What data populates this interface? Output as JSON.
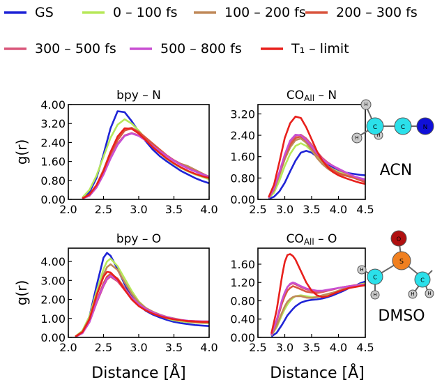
{
  "legend": {
    "items": [
      {
        "label": "GS",
        "color": "#1f24d6"
      },
      {
        "label": "0 – 100 fs",
        "color": "#b7e85a"
      },
      {
        "label": "100 – 200 fs",
        "color": "#c08a5a"
      },
      {
        "label": "200 – 300 fs",
        "color": "#d9553f"
      },
      {
        "label": "300 – 500 fs",
        "color": "#d9567a"
      },
      {
        "label": "500 – 800 fs",
        "color": "#c84fd2"
      },
      {
        "label": "T₁ – limit",
        "color": "#e8201c"
      }
    ]
  },
  "molecules": {
    "acn": {
      "label": "ACN",
      "atoms": [
        "H",
        "H",
        "H",
        "C",
        "C",
        "N"
      ],
      "atom_colors": {
        "H": "#c9c9c9",
        "C": "#2be0ea",
        "N": "#1010d8"
      }
    },
    "dmso": {
      "label": "DMSO",
      "atoms": [
        "O",
        "S",
        "H",
        "C",
        "H",
        "C",
        "H",
        "H"
      ],
      "atom_colors": {
        "O": "#b01010",
        "S": "#f08020",
        "C": "#2be0ea",
        "H": "#c9c9c9"
      }
    }
  },
  "chart_data": [
    {
      "type": "line",
      "title": "bpy – N",
      "xlabel": "",
      "ylabel": "g(r)",
      "xlim": [
        2.0,
        4.0
      ],
      "ylim": [
        0.0,
        4.0
      ],
      "xticks": [
        "2.0",
        "2.5",
        "3.0",
        "3.5",
        "4.0"
      ],
      "yticks": [
        "0.00",
        "0.80",
        "1.60",
        "2.40",
        "3.20",
        "4.00"
      ],
      "x": [
        2.2,
        2.3,
        2.4,
        2.5,
        2.6,
        2.7,
        2.8,
        2.9,
        3.0,
        3.1,
        3.2,
        3.3,
        3.4,
        3.5,
        3.6,
        3.7,
        3.8,
        3.9,
        4.0
      ],
      "series": [
        {
          "name": "GS",
          "values": [
            0.03,
            0.3,
            0.9,
            1.9,
            3.0,
            3.72,
            3.68,
            3.3,
            2.85,
            2.45,
            2.1,
            1.82,
            1.6,
            1.4,
            1.2,
            1.05,
            0.9,
            0.78,
            0.68
          ]
        },
        {
          "name": "0 – 100 fs",
          "values": [
            0.08,
            0.4,
            1.0,
            1.8,
            2.6,
            3.15,
            3.38,
            3.2,
            2.9,
            2.55,
            2.25,
            1.95,
            1.7,
            1.5,
            1.32,
            1.18,
            1.05,
            0.95,
            0.85
          ]
        },
        {
          "name": "100 – 200 fs",
          "values": [
            0.05,
            0.2,
            0.6,
            1.25,
            2.0,
            2.6,
            2.95,
            3.02,
            2.85,
            2.6,
            2.35,
            2.1,
            1.85,
            1.65,
            1.5,
            1.4,
            1.25,
            1.1,
            0.95
          ]
        },
        {
          "name": "200 – 300 fs",
          "values": [
            0.04,
            0.18,
            0.55,
            1.15,
            1.9,
            2.5,
            2.9,
            3.0,
            2.85,
            2.6,
            2.35,
            2.1,
            1.85,
            1.65,
            1.48,
            1.32,
            1.2,
            1.08,
            0.95
          ]
        },
        {
          "name": "300 – 500 fs",
          "values": [
            0.04,
            0.15,
            0.5,
            1.05,
            1.75,
            2.35,
            2.7,
            2.8,
            2.7,
            2.5,
            2.25,
            2.05,
            1.85,
            1.65,
            1.48,
            1.32,
            1.2,
            1.08,
            0.95
          ]
        },
        {
          "name": "500 – 800 fs",
          "values": [
            0.04,
            0.15,
            0.5,
            1.05,
            1.72,
            2.3,
            2.68,
            2.78,
            2.68,
            2.48,
            2.25,
            2.02,
            1.82,
            1.62,
            1.45,
            1.3,
            1.18,
            1.06,
            0.95
          ]
        },
        {
          "name": "T₁ – limit",
          "values": [
            0.04,
            0.2,
            0.6,
            1.2,
            2.0,
            2.65,
            3.0,
            2.98,
            2.78,
            2.5,
            2.2,
            1.95,
            1.72,
            1.52,
            1.35,
            1.2,
            1.08,
            0.98,
            0.9
          ]
        }
      ]
    },
    {
      "type": "line",
      "title": "CO_All – N",
      "xlabel": "",
      "ylabel": "",
      "xlim": [
        2.5,
        4.5
      ],
      "ylim": [
        0.0,
        3.55
      ],
      "xticks": [
        "2.5",
        "3.0",
        "3.5",
        "4.0",
        "4.5"
      ],
      "yticks": [
        "0.00",
        "0.80",
        "1.60",
        "2.40",
        "3.20"
      ],
      "x": [
        2.7,
        2.8,
        2.9,
        3.0,
        3.1,
        3.2,
        3.3,
        3.4,
        3.5,
        3.6,
        3.7,
        3.8,
        3.9,
        4.0,
        4.1,
        4.2,
        4.3,
        4.4,
        4.5
      ],
      "series": [
        {
          "name": "GS",
          "values": [
            0.02,
            0.1,
            0.3,
            0.62,
            1.05,
            1.45,
            1.75,
            1.82,
            1.75,
            1.6,
            1.45,
            1.32,
            1.2,
            1.1,
            1.02,
            0.98,
            0.95,
            0.92,
            0.9
          ]
        },
        {
          "name": "0 – 100 fs",
          "values": [
            0.05,
            0.25,
            0.7,
            1.25,
            1.7,
            2.0,
            2.1,
            2.0,
            1.82,
            1.6,
            1.4,
            1.25,
            1.12,
            1.02,
            0.95,
            0.88,
            0.82,
            0.78,
            0.72
          ]
        },
        {
          "name": "100 – 200 fs",
          "values": [
            0.06,
            0.35,
            0.9,
            1.5,
            1.95,
            2.22,
            2.28,
            2.12,
            1.85,
            1.55,
            1.32,
            1.15,
            1.02,
            0.95,
            0.9,
            0.85,
            0.8,
            0.72,
            0.65
          ]
        },
        {
          "name": "200 – 300 fs",
          "values": [
            0.06,
            0.4,
            1.0,
            1.6,
            2.05,
            2.3,
            2.35,
            2.2,
            1.95,
            1.68,
            1.45,
            1.25,
            1.1,
            0.98,
            0.92,
            0.86,
            0.8,
            0.72,
            0.65
          ]
        },
        {
          "name": "300 – 500 fs",
          "values": [
            0.06,
            0.4,
            1.0,
            1.65,
            2.15,
            2.38,
            2.42,
            2.28,
            2.05,
            1.78,
            1.55,
            1.38,
            1.25,
            1.12,
            1.02,
            0.94,
            0.85,
            0.76,
            0.7
          ]
        },
        {
          "name": "500 – 800 fs",
          "values": [
            0.06,
            0.42,
            1.02,
            1.68,
            2.2,
            2.42,
            2.4,
            2.22,
            1.98,
            1.72,
            1.5,
            1.35,
            1.25,
            1.15,
            1.05,
            0.95,
            0.86,
            0.8,
            0.75
          ]
        },
        {
          "name": "T₁ – limit",
          "values": [
            0.08,
            0.55,
            1.4,
            2.3,
            2.85,
            3.1,
            3.05,
            2.7,
            2.25,
            1.8,
            1.45,
            1.2,
            1.02,
            0.9,
            0.82,
            0.75,
            0.68,
            0.62,
            0.58
          ]
        }
      ]
    },
    {
      "type": "line",
      "title": "bpy – O",
      "xlabel": "Distance [Å]",
      "ylabel": "g(r)",
      "xlim": [
        2.0,
        4.0
      ],
      "ylim": [
        0.0,
        4.7
      ],
      "xticks": [
        "2.0",
        "2.5",
        "3.0",
        "3.5",
        "4.0"
      ],
      "yticks": [
        "0.00",
        "1.00",
        "2.00",
        "3.00",
        "4.00"
      ],
      "x": [
        2.1,
        2.2,
        2.3,
        2.4,
        2.5,
        2.55,
        2.6,
        2.7,
        2.8,
        2.9,
        3.0,
        3.1,
        3.2,
        3.3,
        3.4,
        3.5,
        3.6,
        3.7,
        3.8,
        3.9,
        4.0
      ],
      "series": [
        {
          "name": "GS",
          "values": [
            0.03,
            0.3,
            1.1,
            2.7,
            4.2,
            4.45,
            4.3,
            3.6,
            2.8,
            2.15,
            1.7,
            1.4,
            1.2,
            1.05,
            0.92,
            0.82,
            0.75,
            0.7,
            0.65,
            0.62,
            0.6
          ]
        },
        {
          "name": "0 – 100 fs",
          "values": [
            0.05,
            0.35,
            1.1,
            2.4,
            3.6,
            4.0,
            4.15,
            3.75,
            3.1,
            2.45,
            1.9,
            1.55,
            1.3,
            1.15,
            1.0,
            0.9,
            0.85,
            0.8,
            0.78,
            0.76,
            0.75
          ]
        },
        {
          "name": "100 – 200 fs",
          "values": [
            0.04,
            0.3,
            1.0,
            2.2,
            3.3,
            3.7,
            3.85,
            3.55,
            2.9,
            2.3,
            1.85,
            1.55,
            1.35,
            1.2,
            1.08,
            1.0,
            0.92,
            0.85,
            0.8,
            0.78,
            0.77
          ]
        },
        {
          "name": "200 – 300 fs",
          "values": [
            0.03,
            0.25,
            0.85,
            1.9,
            2.85,
            3.2,
            3.35,
            3.1,
            2.6,
            2.1,
            1.75,
            1.5,
            1.32,
            1.18,
            1.05,
            0.97,
            0.9,
            0.85,
            0.82,
            0.8,
            0.8
          ]
        },
        {
          "name": "300 – 500 fs",
          "values": [
            0.03,
            0.22,
            0.8,
            1.8,
            2.7,
            3.05,
            3.2,
            2.95,
            2.5,
            2.05,
            1.7,
            1.48,
            1.3,
            1.15,
            1.05,
            0.96,
            0.9,
            0.86,
            0.84,
            0.82,
            0.82
          ]
        },
        {
          "name": "500 – 800 fs",
          "values": [
            0.03,
            0.22,
            0.8,
            1.85,
            2.75,
            3.1,
            3.25,
            3.0,
            2.55,
            2.1,
            1.75,
            1.5,
            1.32,
            1.18,
            1.07,
            0.98,
            0.92,
            0.88,
            0.86,
            0.85,
            0.84
          ]
        },
        {
          "name": "T₁ – limit",
          "values": [
            0.04,
            0.28,
            0.95,
            2.2,
            3.2,
            3.45,
            3.42,
            3.05,
            2.5,
            2.0,
            1.65,
            1.42,
            1.25,
            1.12,
            1.02,
            0.95,
            0.9,
            0.86,
            0.84,
            0.82,
            0.82
          ]
        }
      ]
    },
    {
      "type": "line",
      "title": "CO_All – O",
      "xlabel": "Distance [Å]",
      "ylabel": "",
      "xlim": [
        2.5,
        4.5
      ],
      "ylim": [
        0.0,
        1.95
      ],
      "xticks": [
        "2.5",
        "3.0",
        "3.5",
        "4.0",
        "4.5"
      ],
      "yticks": [
        "0.00",
        "0.40",
        "0.80",
        "1.20",
        "1.60"
      ],
      "x": [
        2.75,
        2.85,
        2.95,
        3.0,
        3.05,
        3.1,
        3.15,
        3.2,
        3.3,
        3.4,
        3.5,
        3.6,
        3.7,
        3.8,
        3.9,
        4.0,
        4.1,
        4.2,
        4.3,
        4.4,
        4.5
      ],
      "series": [
        {
          "name": "GS",
          "values": [
            0.02,
            0.1,
            0.28,
            0.38,
            0.48,
            0.55,
            0.62,
            0.68,
            0.76,
            0.8,
            0.82,
            0.83,
            0.85,
            0.88,
            0.92,
            0.97,
            1.02,
            1.08,
            1.12,
            1.18,
            1.22
          ]
        },
        {
          "name": "0 – 100 fs",
          "values": [
            0.04,
            0.22,
            0.5,
            0.62,
            0.72,
            0.8,
            0.86,
            0.9,
            0.92,
            0.9,
            0.88,
            0.88,
            0.9,
            0.92,
            0.96,
            1.0,
            1.05,
            1.1,
            1.13,
            1.16,
            1.18
          ]
        },
        {
          "name": "100 – 200 fs",
          "values": [
            0.04,
            0.25,
            0.55,
            0.68,
            0.78,
            0.84,
            0.88,
            0.9,
            0.9,
            0.87,
            0.86,
            0.88,
            0.92,
            0.95,
            0.98,
            1.02,
            1.06,
            1.1,
            1.12,
            1.14,
            1.15
          ]
        },
        {
          "name": "200 – 300 fs",
          "values": [
            0.05,
            0.35,
            0.75,
            0.9,
            1.02,
            1.08,
            1.12,
            1.1,
            1.05,
            1.0,
            0.98,
            0.97,
            0.99,
            1.02,
            1.05,
            1.08,
            1.1,
            1.12,
            1.13,
            1.14,
            1.15
          ]
        },
        {
          "name": "300 – 500 fs",
          "values": [
            0.05,
            0.38,
            0.82,
            0.98,
            1.1,
            1.16,
            1.18,
            1.16,
            1.1,
            1.05,
            1.02,
            1.0,
            1.0,
            1.02,
            1.05,
            1.08,
            1.1,
            1.12,
            1.14,
            1.15,
            1.16
          ]
        },
        {
          "name": "500 – 800 fs",
          "values": [
            0.05,
            0.38,
            0.82,
            0.98,
            1.1,
            1.17,
            1.2,
            1.18,
            1.12,
            1.07,
            1.04,
            1.02,
            1.02,
            1.04,
            1.06,
            1.08,
            1.1,
            1.12,
            1.13,
            1.14,
            1.15
          ]
        },
        {
          "name": "T₁ – limit",
          "values": [
            0.08,
            0.6,
            1.35,
            1.65,
            1.8,
            1.82,
            1.78,
            1.7,
            1.45,
            1.2,
            1.02,
            0.92,
            0.88,
            0.9,
            0.95,
            1.0,
            1.04,
            1.08,
            1.1,
            1.12,
            1.14
          ]
        }
      ]
    }
  ]
}
